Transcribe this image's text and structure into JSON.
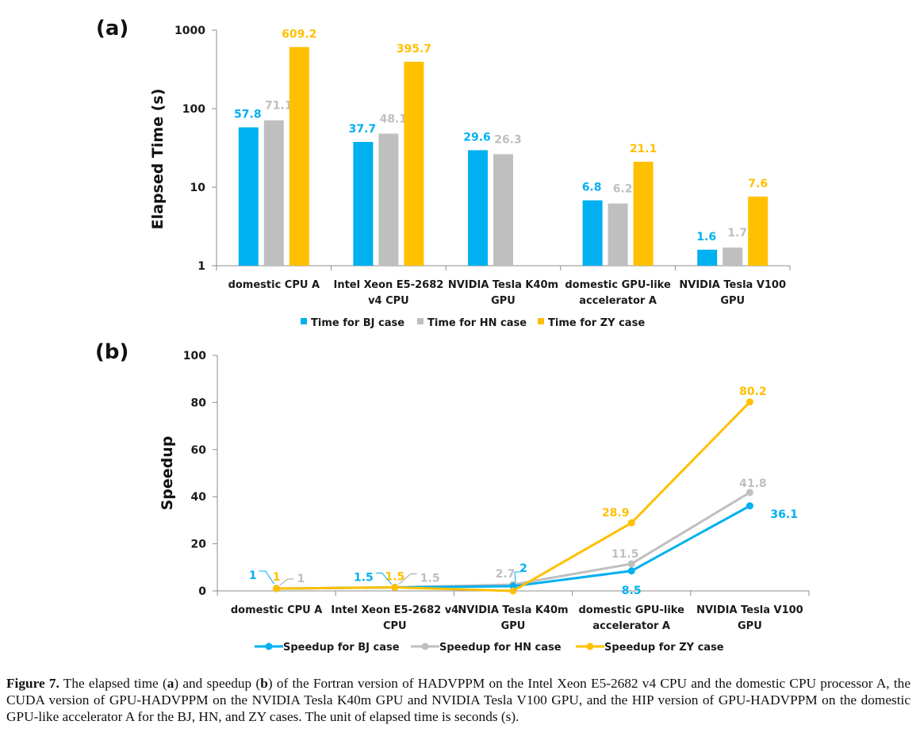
{
  "caption": {
    "label": "Figure 7.",
    "segments": [
      {
        "t": " The elapsed time (",
        "b": false
      },
      {
        "t": "a",
        "b": true
      },
      {
        "t": ") and speedup (",
        "b": false
      },
      {
        "t": "b",
        "b": true
      },
      {
        "t": ") of the Fortran version of HADVPPM on the Intel Xeon E5-2682 v4 CPU and the domestic CPU processor A, the CUDA version of GPU-HADVPPM on the NVIDIA Tesla K40m GPU and NVIDIA Tesla V100 GPU, and the HIP version of GPU-HADVPPM on the domestic GPU-like accelerator A for the BJ, HN, and ZY cases. The unit of elapsed time is seconds (s).",
        "b": false
      }
    ]
  },
  "colors": {
    "bj": "#00b0f0",
    "hn": "#bfbfbf",
    "zy": "#ffc000"
  },
  "chart_data": [
    {
      "panel": "(a)",
      "type": "bar",
      "yscale": "log",
      "ylabel": "Elapsed Time (s)",
      "ylim": [
        1,
        1000
      ],
      "yticks": [
        "1",
        "10",
        "100",
        "1000"
      ],
      "categories": [
        [
          "domestic CPU A"
        ],
        [
          "Intel Xeon E5-2682",
          "v4 CPU"
        ],
        [
          "NVIDIA Tesla K40m",
          "GPU"
        ],
        [
          "domestic GPU-like",
          "accelerator A"
        ],
        [
          "NVIDIA Tesla V100",
          "GPU"
        ]
      ],
      "series": [
        {
          "name": "Time for BJ case",
          "key": "bj",
          "values": [
            57.8,
            37.7,
            29.6,
            6.8,
            1.6
          ],
          "labels": [
            "57.8",
            "37.7",
            "29.6",
            "6.8",
            "1.6"
          ]
        },
        {
          "name": "Time for HN case",
          "key": "hn",
          "values": [
            71.1,
            48.1,
            26.3,
            6.2,
            1.7
          ],
          "labels": [
            "71.1",
            "48.1",
            "26.3",
            "6.2",
            "1.7"
          ]
        },
        {
          "name": "Time for ZY case",
          "key": "zy",
          "values": [
            609.2,
            395.7,
            null,
            21.1,
            7.6
          ],
          "labels": [
            "609.2",
            "395.7",
            "",
            "21.1",
            "7.6"
          ]
        }
      ],
      "legend": "bottom"
    },
    {
      "panel": "(b)",
      "type": "line",
      "ylabel": "Speedup",
      "ylim": [
        0,
        100
      ],
      "yticks": [
        "0",
        "20",
        "40",
        "60",
        "80",
        "100"
      ],
      "categories": [
        [
          "domestic CPU A"
        ],
        [
          "Intel Xeon E5-2682 v4",
          "CPU"
        ],
        [
          "NVIDIA Tesla K40m",
          "GPU"
        ],
        [
          "domestic GPU-like",
          "accelerator A"
        ],
        [
          "NVIDIA Tesla V100",
          "GPU"
        ]
      ],
      "series": [
        {
          "name": "Speedup for BJ case",
          "key": "bj",
          "values": [
            1,
            1.5,
            2,
            8.5,
            36.1
          ],
          "labels": [
            "1",
            "1.5",
            "2",
            "8.5",
            "36.1"
          ]
        },
        {
          "name": "Speedup for HN case",
          "key": "hn",
          "values": [
            1,
            1.5,
            2.7,
            11.5,
            41.8
          ],
          "labels": [
            "1",
            "1.5",
            "2.7",
            "11.5",
            "41.8"
          ]
        },
        {
          "name": "Speedup for ZY case",
          "key": "zy",
          "values": [
            1,
            1.5,
            0,
            28.9,
            80.2
          ],
          "labels": [
            "1",
            "1.5",
            "",
            "28.9",
            "80.2"
          ]
        }
      ],
      "legend": "bottom"
    }
  ]
}
